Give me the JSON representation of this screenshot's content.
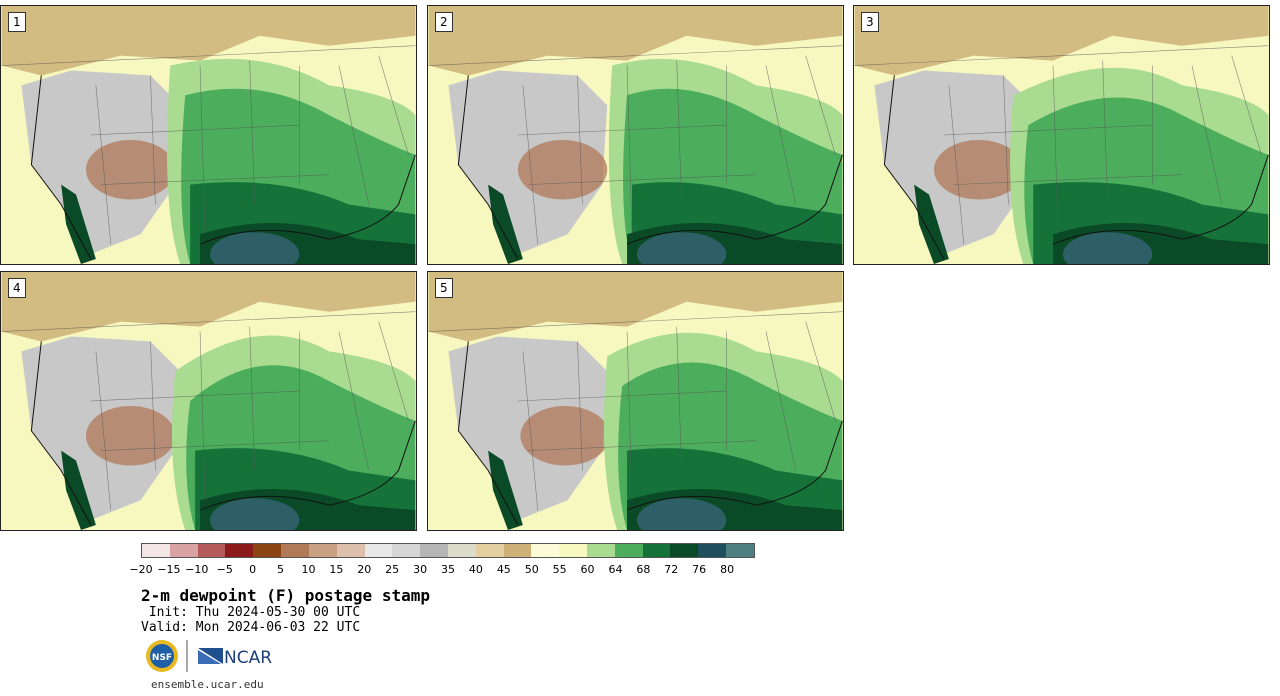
{
  "panels": [
    {
      "label": "1"
    },
    {
      "label": "2"
    },
    {
      "label": "3"
    },
    {
      "label": "4"
    },
    {
      "label": "5"
    }
  ],
  "colorbar": {
    "ticks": [
      "−20",
      "−15",
      "−10",
      "−5",
      "0",
      "5",
      "10",
      "15",
      "20",
      "25",
      "30",
      "35",
      "40",
      "45",
      "50",
      "55",
      "60",
      "64",
      "68",
      "72",
      "76",
      "80"
    ],
    "colors": [
      "#f4e6e6",
      "#d9a3a3",
      "#b55a5a",
      "#8b1a1a",
      "#8b4513",
      "#b07a58",
      "#c9a083",
      "#dcc0ab",
      "#e8e8e8",
      "#d6d6d6",
      "#b5b5b5",
      "#dcdccb",
      "#e3cfa0",
      "#cdb177",
      "#fbfbd7",
      "#f7f7c0",
      "#a9dc90",
      "#4cae5d",
      "#15733a",
      "#0a4a26",
      "#1f4f5c",
      "#4f7f80"
    ]
  },
  "title": "2-m dewpoint (F) postage stamp",
  "init": " Init: Thu 2024-05-30 00 UTC",
  "valid": "Valid: Mon 2024-06-03 22 UTC",
  "logos": {
    "nsf": "NSF",
    "ncar": "NCAR"
  },
  "site": "ensemble.ucar.edu",
  "colors": {
    "dry_tan": "#cdb177",
    "light_yellow": "#f7f7c0",
    "gray": "#c8c8c8",
    "brown": "#b07a58",
    "green_light": "#a9dc90",
    "green_mid": "#4cae5d",
    "green_dark": "#15733a",
    "green_darkest": "#0a4a26",
    "teal": "#2e5f66"
  }
}
